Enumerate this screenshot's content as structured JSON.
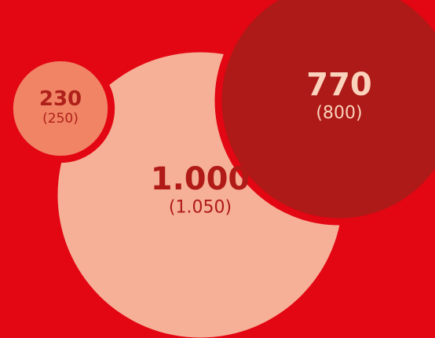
{
  "chart_data": {
    "type": "bubble",
    "background": "#e30613",
    "colors": [
      "#f08465",
      "#f6b097",
      "#ad1a17"
    ],
    "series": [
      {
        "values": [
          230,
          1000,
          770
        ],
        "value_labels": [
          "230",
          "1.000",
          "770"
        ]
      },
      {
        "values": [
          250,
          1050,
          800
        ],
        "value_labels": [
          "(250)",
          "(1.050)",
          "(800)"
        ]
      }
    ]
  }
}
